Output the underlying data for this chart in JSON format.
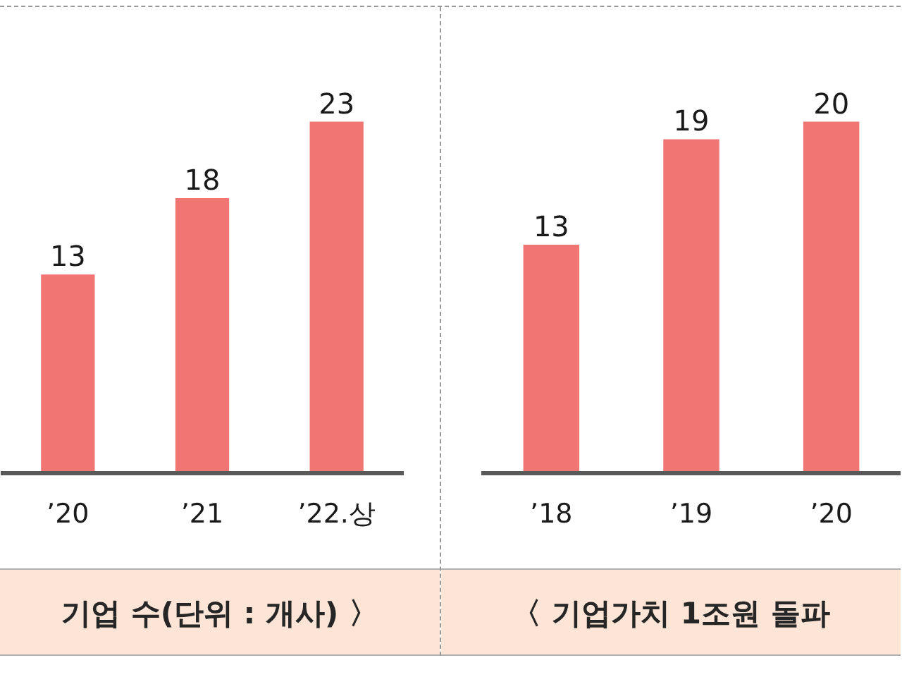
{
  "chart_data": [
    {
      "type": "bar",
      "title": "기업 수(단위 : 개사) 〉",
      "categories": [
        "’20",
        "’21",
        "’22.상"
      ],
      "values": [
        13,
        18,
        23
      ],
      "color": "#f07573",
      "data_labels": true,
      "tick_labels": "x",
      "grid": false
    },
    {
      "type": "bar",
      "title": "〈 기업가치 1조원 돌파",
      "categories": [
        "’18",
        "’19",
        "’20"
      ],
      "values": [
        13,
        19,
        20
      ],
      "color": "#f07573",
      "data_labels": true,
      "tick_labels": "x",
      "grid": false
    }
  ]
}
